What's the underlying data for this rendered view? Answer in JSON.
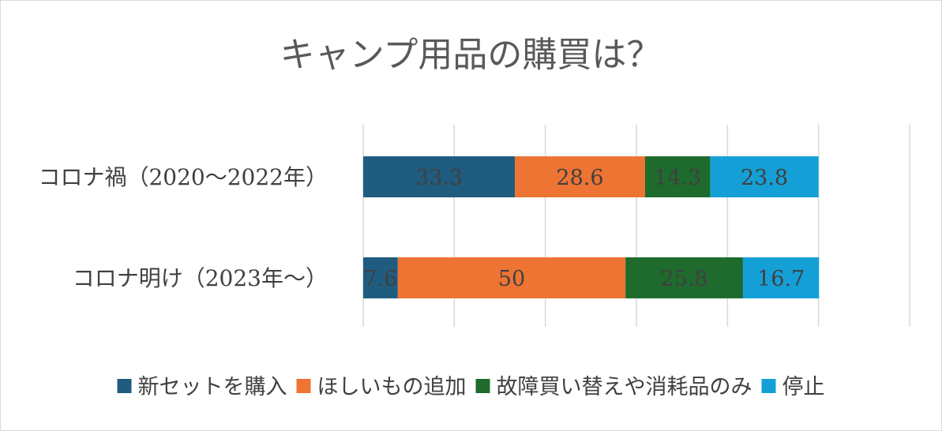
{
  "chart_data": {
    "type": "bar",
    "orientation": "horizontal",
    "stacked": true,
    "title": "キャンプ用品の購買は？",
    "categories": [
      "コロナ禍（2020〜2022年）",
      "コロナ明け（2023年〜）"
    ],
    "series": [
      {
        "name": "新セットを購入",
        "color": "#1f5c7f",
        "values": [
          33.3,
          7.6
        ]
      },
      {
        "name": "ほしいもの追加",
        "color": "#ed7433",
        "values": [
          28.6,
          50
        ]
      },
      {
        "name": "故障買い替えや消耗品のみ",
        "color": "#1e6b2d",
        "values": [
          14.3,
          25.8
        ]
      },
      {
        "name": "停止",
        "color": "#14a0d6",
        "values": [
          23.8,
          16.7
        ]
      }
    ],
    "xlim": [
      0,
      120
    ],
    "grid": true,
    "legend_position": "bottom",
    "data_labels": true
  }
}
